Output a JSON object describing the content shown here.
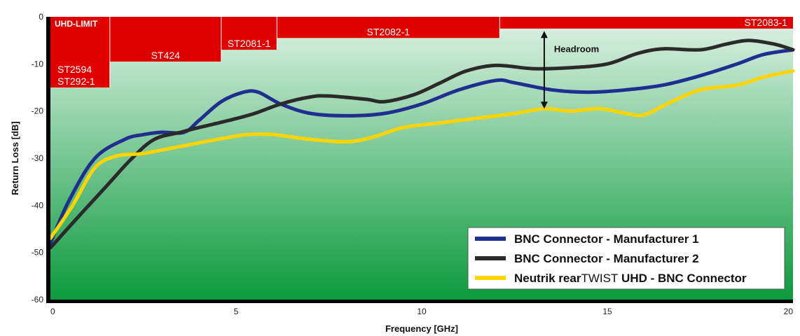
{
  "chart_data": {
    "type": "line",
    "xlabel": "Frequency [GHz]",
    "ylabel": "Return Loss [dB]",
    "xlim": [
      0,
      20
    ],
    "ylim": [
      -60,
      0
    ],
    "x_ticks": [
      "0",
      "5",
      "10",
      "15",
      "20"
    ],
    "y_ticks": [
      "0",
      "-10",
      "-20",
      "-30",
      "-40",
      "-50",
      "-60"
    ],
    "background": {
      "top_color": "#dff2e6",
      "bottom_color": "#0d9a3e"
    },
    "limit_color": "#e00000",
    "uhd_limit_label": "UHD-LIMIT",
    "limit_steps": [
      {
        "x_start": 0,
        "x_end": 1.6,
        "y": -15,
        "label": "ST2594\nST292-1"
      },
      {
        "x_start": 1.6,
        "x_end": 4.6,
        "y": -9.5,
        "label": "ST424"
      },
      {
        "x_start": 4.6,
        "x_end": 6.1,
        "y": -7,
        "label": "ST2081-1"
      },
      {
        "x_start": 6.1,
        "x_end": 12.1,
        "y": -4.5,
        "label": "ST2082-1"
      },
      {
        "x_start": 12.1,
        "x_end": 20,
        "y": -2.5,
        "label": "ST2083-1"
      }
    ],
    "annotation": {
      "text": "Headroom",
      "x": 13.3,
      "y_top": -3,
      "y_bottom": -19.5
    },
    "series": [
      {
        "name": "BNC Connector - Manufacturer 1",
        "color": "#1f2f8f",
        "points": [
          [
            0,
            -48
          ],
          [
            0.5,
            -39
          ],
          [
            1.2,
            -30
          ],
          [
            2.0,
            -26
          ],
          [
            2.5,
            -25
          ],
          [
            3.0,
            -24.5
          ],
          [
            3.6,
            -24.5
          ],
          [
            4.0,
            -22
          ],
          [
            4.6,
            -18
          ],
          [
            5.2,
            -16
          ],
          [
            5.6,
            -16
          ],
          [
            6.2,
            -18.5
          ],
          [
            7.0,
            -20.5
          ],
          [
            8.0,
            -21
          ],
          [
            9.0,
            -20.5
          ],
          [
            10.0,
            -18.5
          ],
          [
            11.0,
            -15.5
          ],
          [
            12.0,
            -13.5
          ],
          [
            12.5,
            -14
          ],
          [
            13.5,
            -15.5
          ],
          [
            14.5,
            -16
          ],
          [
            15.5,
            -15.5
          ],
          [
            16.5,
            -14.5
          ],
          [
            17.5,
            -12.5
          ],
          [
            18.5,
            -10
          ],
          [
            19.2,
            -8
          ],
          [
            20,
            -7
          ]
        ]
      },
      {
        "name": "BNC Connector - Manufacturer 2",
        "color": "#2a2a2a",
        "points": [
          [
            0,
            -49
          ],
          [
            0.8,
            -42
          ],
          [
            1.5,
            -36
          ],
          [
            2.2,
            -30
          ],
          [
            2.8,
            -26
          ],
          [
            3.5,
            -24.5
          ],
          [
            4.0,
            -23.5
          ],
          [
            4.8,
            -22
          ],
          [
            5.5,
            -20.5
          ],
          [
            6.2,
            -18.5
          ],
          [
            7.0,
            -17
          ],
          [
            7.5,
            -16.8
          ],
          [
            8.5,
            -17.5
          ],
          [
            9.0,
            -18
          ],
          [
            9.8,
            -16.5
          ],
          [
            10.5,
            -14
          ],
          [
            11.2,
            -11.5
          ],
          [
            12.0,
            -10.3
          ],
          [
            13.0,
            -11
          ],
          [
            14.0,
            -10.8
          ],
          [
            15.0,
            -10
          ],
          [
            15.8,
            -7.8
          ],
          [
            16.5,
            -6.8
          ],
          [
            17.5,
            -7
          ],
          [
            18.2,
            -5.8
          ],
          [
            18.8,
            -5
          ],
          [
            19.5,
            -5.8
          ],
          [
            20,
            -7
          ]
        ]
      },
      {
        "name": "Neutrik rearTWIST UHD - BNC Connector",
        "color": "#ffd400",
        "points": [
          [
            0,
            -47
          ],
          [
            0.6,
            -40
          ],
          [
            1.2,
            -32
          ],
          [
            1.8,
            -29.5
          ],
          [
            2.5,
            -29
          ],
          [
            3.5,
            -27.5
          ],
          [
            4.5,
            -26
          ],
          [
            5.3,
            -25
          ],
          [
            6.0,
            -25
          ],
          [
            7.0,
            -26
          ],
          [
            8.0,
            -26.5
          ],
          [
            8.7,
            -25.5
          ],
          [
            9.5,
            -23.5
          ],
          [
            10.5,
            -22.5
          ],
          [
            11.5,
            -21.5
          ],
          [
            12.5,
            -20.5
          ],
          [
            13.3,
            -19.5
          ],
          [
            14.0,
            -20
          ],
          [
            14.8,
            -19.5
          ],
          [
            15.5,
            -20.5
          ],
          [
            16.0,
            -20.8
          ],
          [
            16.6,
            -18.5
          ],
          [
            17.5,
            -15.5
          ],
          [
            18.5,
            -14.5
          ],
          [
            19.2,
            -12.8
          ],
          [
            20,
            -11.5
          ]
        ]
      }
    ],
    "legend": {
      "placement": "bottom-right",
      "entries": [
        {
          "bold": "BNC Connector - Manufacturer 1",
          "normal": "",
          "bold_after": ""
        },
        {
          "bold": "BNC Connector - Manufacturer 2",
          "normal": "",
          "bold_after": ""
        },
        {
          "bold": "Neutrik rear",
          "normal": "TWIST",
          "bold_after": " UHD - BNC Connector"
        }
      ]
    }
  }
}
